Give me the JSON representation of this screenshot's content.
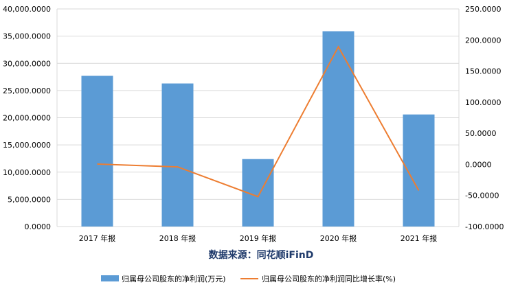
{
  "chart_data": {
    "type": "bar+line",
    "categories": [
      "2017 年报",
      "2018 年报",
      "2019 年报",
      "2020 年报",
      "2021 年报"
    ],
    "series": [
      {
        "name": "归属母公司股东的净利润(万元)",
        "type": "bar",
        "axis": "left",
        "color": "#5b9bd5",
        "values": [
          27700,
          26300,
          12400,
          35900,
          20600
        ]
      },
      {
        "name": "归属母公司股东的净利润同比增长率(%)",
        "type": "line",
        "axis": "right",
        "color": "#ed7d31",
        "values": [
          0.5,
          -4.0,
          -52.0,
          189.0,
          -42.0
        ]
      }
    ],
    "left_axis": {
      "ylim": [
        0,
        40000
      ],
      "ticks": [
        "0.0000",
        "5,000.0000",
        "10,000.0000",
        "15,000.0000",
        "20,000.0000",
        "25,000.0000",
        "30,000.0000",
        "35,000.0000",
        "40,000.0000"
      ]
    },
    "right_axis": {
      "ylim": [
        -100,
        250
      ],
      "ticks": [
        "-100.0000",
        "-50.0000",
        "0.0000",
        "50.0000",
        "100.0000",
        "150.0000",
        "200.0000",
        "250.0000"
      ]
    },
    "grid": true,
    "legend_position": "bottom",
    "annotation": "数据来源：同花顺iFinD"
  }
}
